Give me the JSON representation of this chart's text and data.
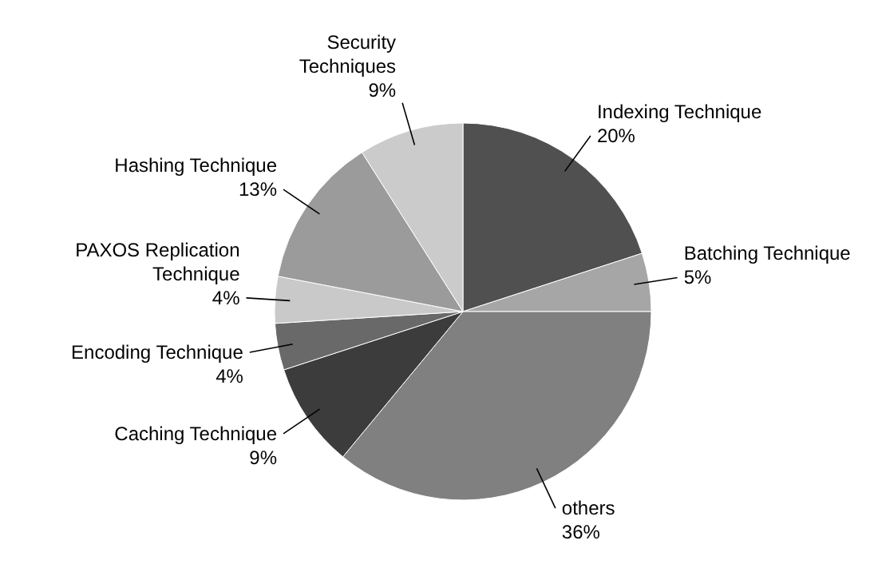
{
  "chart_data": {
    "type": "pie",
    "categories": [
      "Indexing Technique",
      "Batching Technique",
      "others",
      "Caching Technique",
      "Encoding Technique",
      "PAXOS  Replication Technique",
      "Hashing Technique",
      "Security Techniques"
    ],
    "values": [
      20,
      5,
      36,
      9,
      4,
      4,
      13,
      9
    ],
    "colors": [
      "#505050",
      "#a6a6a6",
      "#808080",
      "#3c3c3c",
      "#696969",
      "#c9c9c9",
      "#9b9b9b",
      "#cbcbcb"
    ],
    "value_labels": [
      "20%",
      "5%",
      "36%",
      "9%",
      "4%",
      "4%",
      "13%",
      "9%"
    ]
  }
}
